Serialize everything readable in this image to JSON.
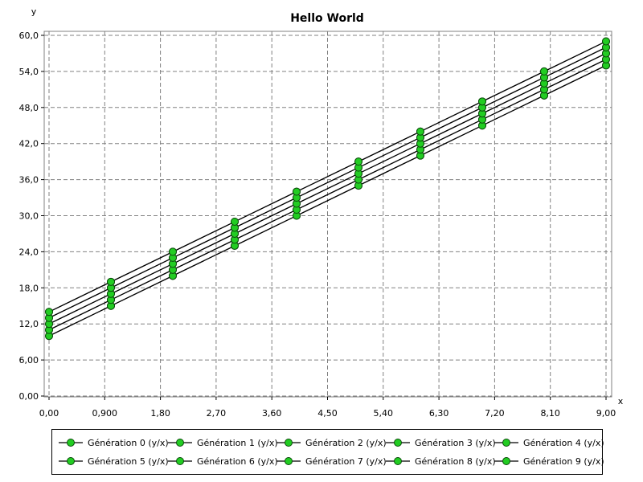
{
  "chart_data": {
    "type": "line",
    "title": "Hello World",
    "xlabel": "x",
    "ylabel": "y",
    "xlim": [
      0,
      9
    ],
    "ylim": [
      0,
      60
    ],
    "grid": true,
    "legend_position": "bottom",
    "x_ticks": [
      "0,00",
      "0,900",
      "1,80",
      "2,70",
      "3,60",
      "4,50",
      "5,40",
      "6,30",
      "7,20",
      "8,10",
      "9,00"
    ],
    "y_ticks": [
      "0,00",
      "6,00",
      "12,0",
      "18,0",
      "24,0",
      "30,0",
      "36,0",
      "42,0",
      "48,0",
      "54,0",
      "60,0"
    ],
    "x": [
      0,
      1,
      2,
      3,
      4,
      5,
      6,
      7,
      8,
      9
    ],
    "series": [
      {
        "name": "Génération 0 (y/x)",
        "values": [
          10,
          15,
          20,
          25,
          30,
          35,
          40,
          45,
          50,
          55
        ]
      },
      {
        "name": "Génération 1 (y/x)",
        "values": [
          11,
          16,
          21,
          26,
          31,
          36,
          41,
          46,
          51,
          56
        ]
      },
      {
        "name": "Génération 2 (y/x)",
        "values": [
          12,
          17,
          22,
          27,
          32,
          37,
          42,
          47,
          52,
          57
        ]
      },
      {
        "name": "Génération 3 (y/x)",
        "values": [
          13,
          18,
          23,
          28,
          33,
          38,
          43,
          48,
          53,
          58
        ]
      },
      {
        "name": "Génération 4 (y/x)",
        "values": [
          14,
          19,
          24,
          29,
          34,
          39,
          44,
          49,
          54,
          59
        ]
      },
      {
        "name": "Génération 5 (y/x)",
        "values": [
          10,
          15,
          20,
          25,
          30,
          35,
          40,
          45,
          50,
          55
        ]
      },
      {
        "name": "Génération 6 (y/x)",
        "values": [
          11,
          16,
          21,
          26,
          31,
          36,
          41,
          46,
          51,
          56
        ]
      },
      {
        "name": "Génération 7 (y/x)",
        "values": [
          12,
          17,
          22,
          27,
          32,
          37,
          42,
          47,
          52,
          57
        ]
      },
      {
        "name": "Génération 8 (y/x)",
        "values": [
          13,
          18,
          23,
          28,
          33,
          38,
          43,
          48,
          53,
          58
        ]
      },
      {
        "name": "Génération 9 (y/x)",
        "values": [
          14,
          19,
          24,
          29,
          34,
          39,
          44,
          49,
          54,
          59
        ]
      }
    ],
    "colors": {
      "line": "#000000",
      "marker_fill": "#22cc22",
      "marker_stroke": "#0a4a0a",
      "grid": "#808080"
    }
  }
}
